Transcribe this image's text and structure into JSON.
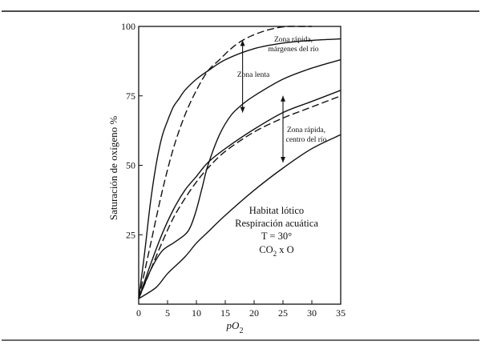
{
  "chart_data": {
    "type": "line",
    "title": "",
    "xlabel": "pO",
    "xlabel_subscript": "2",
    "ylabel": "Saturación de oxígeno %",
    "xlim": [
      0,
      35
    ],
    "ylim": [
      0,
      100
    ],
    "x_ticks": [
      "0",
      "5",
      "10",
      "15",
      "20",
      "25",
      "30",
      "35"
    ],
    "y_ticks": [
      "25",
      "50",
      "75",
      "100"
    ],
    "grid": false,
    "legend_box": {
      "line1": "Habitat lótico",
      "line2": "Respiración acuática",
      "line3": "T = 30°",
      "line4_main": "CO",
      "line4_sub": "2",
      "line4_rest": " x O"
    },
    "annotations": {
      "rapida_margen_1": "Zona rápida,",
      "rapida_margen_2": "márgenes del río",
      "lenta": "Zona lenta",
      "rapida_centro_1": "Zona rápida,",
      "rapida_centro_2": "centro del río"
    },
    "series": [
      {
        "name": "Zona rápida, márgenes del río (sin CO2)",
        "style": "solid",
        "x": [
          0,
          1,
          2,
          3,
          4,
          5,
          6,
          7,
          8,
          10,
          12,
          15,
          20,
          25,
          30,
          35
        ],
        "y": [
          2,
          18,
          36,
          50,
          60,
          66,
          71,
          74,
          77,
          81,
          84,
          88,
          92,
          94,
          95,
          95.5
        ]
      },
      {
        "name": "Zona rápida, márgenes del río (con CO2)",
        "style": "dashed",
        "x": [
          0,
          2,
          4,
          6,
          8,
          10,
          12,
          14,
          16,
          18,
          20,
          22,
          24,
          26,
          28,
          30
        ],
        "y": [
          2,
          21,
          40,
          56,
          68,
          77,
          84,
          88,
          92,
          95,
          97,
          98.5,
          99.5,
          100,
          100,
          100
        ]
      },
      {
        "name": "Zona lenta (sin CO2)",
        "style": "solid",
        "x": [
          0,
          2,
          4,
          6,
          8,
          9,
          10,
          11,
          12,
          14,
          16,
          18,
          20,
          25,
          30,
          35
        ],
        "y": [
          2,
          12,
          19,
          22,
          25,
          28,
          34,
          42,
          50,
          61,
          68,
          72,
          75,
          81,
          85,
          88
        ]
      },
      {
        "name": "Zona rápida, centro del río (sin CO2)",
        "style": "solid",
        "x": [
          0,
          2,
          4,
          6,
          8,
          10,
          12,
          15,
          20,
          25,
          30,
          35
        ],
        "y": [
          2,
          14,
          25,
          34,
          41,
          46,
          51,
          56,
          63,
          69,
          73,
          77
        ]
      },
      {
        "name": "Zona rápida, centro del río (con CO2)",
        "style": "dashed",
        "x": [
          0,
          2,
          4,
          6,
          8,
          10,
          12,
          15,
          20,
          25,
          30,
          35
        ],
        "y": [
          2,
          12,
          22,
          31,
          38,
          44,
          49,
          55,
          62,
          67,
          71,
          75
        ]
      },
      {
        "name": "Zona lenta (con CO2)",
        "style": "solid",
        "x": [
          0,
          3,
          5,
          8,
          10,
          12,
          15,
          20,
          25,
          30,
          35
        ],
        "y": [
          2,
          6,
          11,
          17,
          22,
          26,
          32,
          41,
          49,
          56,
          61
        ]
      }
    ],
    "arrows": [
      {
        "name": "arrow-rapida-margen",
        "x": 18,
        "from_y": 82,
        "to_y": 95
      },
      {
        "name": "arrow-lenta",
        "x": 18,
        "from_y": 82,
        "to_y": 69
      },
      {
        "name": "arrow-rapida-centro-up",
        "x": 25,
        "from_y": 58,
        "to_y": 75
      },
      {
        "name": "arrow-rapida-centro-down",
        "x": 25,
        "from_y": 58,
        "to_y": 51
      }
    ]
  }
}
